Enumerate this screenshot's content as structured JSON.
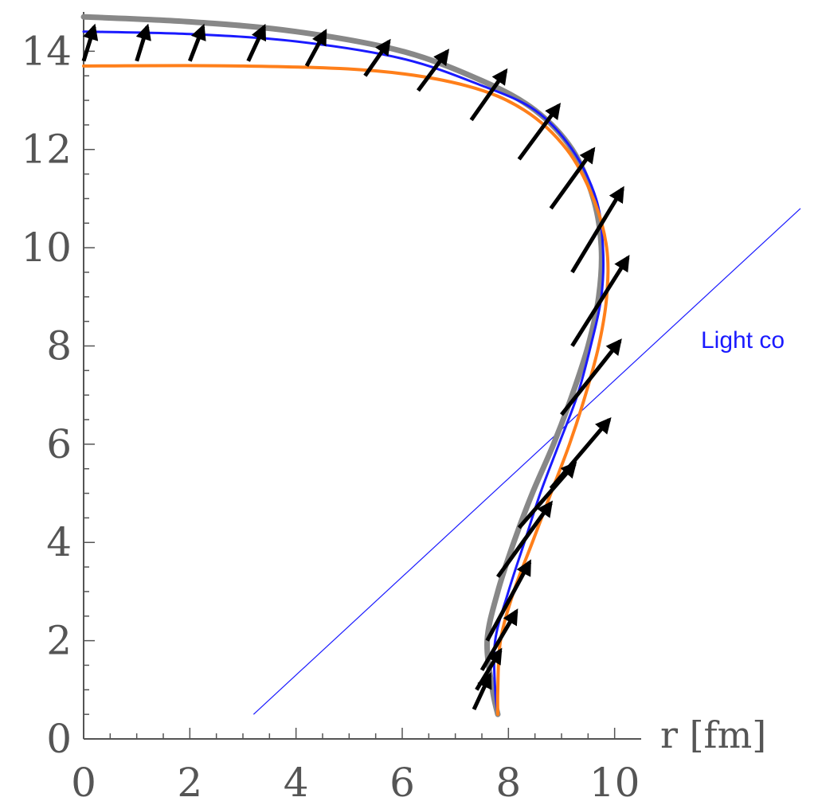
{
  "chart_data": {
    "type": "line",
    "title": "",
    "xlabel": "r [fm]",
    "ylabel": "",
    "xlim": [
      0,
      10.5
    ],
    "ylim": [
      0,
      14.8
    ],
    "x_ticks": [
      "0",
      "2",
      "4",
      "6",
      "8",
      "10"
    ],
    "y_ticks": [
      "0",
      "2",
      "4",
      "6",
      "8",
      "10",
      "12",
      "14"
    ],
    "grid": false,
    "legend": "none",
    "series": [
      {
        "color": "#888888",
        "points": [
          [
            7.8,
            0.5
          ],
          [
            7.7,
            1.0
          ],
          [
            7.6,
            2.0
          ],
          [
            7.8,
            3.0
          ],
          [
            8.1,
            4.0
          ],
          [
            8.45,
            5.0
          ],
          [
            8.85,
            6.0
          ],
          [
            9.2,
            7.0
          ],
          [
            9.5,
            8.0
          ],
          [
            9.7,
            9.0
          ],
          [
            9.75,
            10.0
          ],
          [
            9.6,
            11.0
          ],
          [
            9.2,
            12.0
          ],
          [
            8.5,
            12.8
          ],
          [
            7.5,
            13.4
          ],
          [
            6.0,
            14.0
          ],
          [
            4.0,
            14.4
          ],
          [
            2.0,
            14.6
          ],
          [
            0.0,
            14.7
          ]
        ]
      },
      {
        "color": "#1a1aff",
        "points": [
          [
            7.8,
            0.5
          ],
          [
            7.75,
            1.0
          ],
          [
            7.75,
            2.0
          ],
          [
            8.0,
            3.0
          ],
          [
            8.3,
            4.0
          ],
          [
            8.6,
            5.0
          ],
          [
            8.95,
            6.0
          ],
          [
            9.3,
            7.0
          ],
          [
            9.55,
            8.0
          ],
          [
            9.75,
            9.0
          ],
          [
            9.78,
            10.0
          ],
          [
            9.65,
            11.0
          ],
          [
            9.2,
            12.0
          ],
          [
            8.5,
            12.8
          ],
          [
            7.5,
            13.3
          ],
          [
            6.0,
            13.85
          ],
          [
            4.0,
            14.2
          ],
          [
            2.0,
            14.35
          ],
          [
            0.0,
            14.4
          ]
        ]
      },
      {
        "color": "#ff7f1a",
        "points": [
          [
            7.8,
            0.5
          ],
          [
            7.8,
            1.0
          ],
          [
            7.85,
            2.0
          ],
          [
            8.1,
            3.0
          ],
          [
            8.45,
            4.0
          ],
          [
            8.8,
            5.0
          ],
          [
            9.15,
            6.0
          ],
          [
            9.45,
            7.0
          ],
          [
            9.7,
            8.0
          ],
          [
            9.85,
            9.0
          ],
          [
            9.85,
            10.0
          ],
          [
            9.6,
            11.0
          ],
          [
            9.1,
            12.0
          ],
          [
            8.3,
            12.8
          ],
          [
            7.2,
            13.3
          ],
          [
            5.5,
            13.6
          ],
          [
            3.0,
            13.7
          ],
          [
            0.0,
            13.7
          ]
        ]
      }
    ],
    "arrows": [
      [
        0.0,
        13.8,
        0.2,
        14.5
      ],
      [
        1.0,
        13.8,
        1.2,
        14.5
      ],
      [
        2.0,
        13.8,
        2.25,
        14.5
      ],
      [
        3.1,
        13.8,
        3.4,
        14.5
      ],
      [
        4.2,
        13.7,
        4.55,
        14.4
      ],
      [
        5.3,
        13.5,
        5.75,
        14.2
      ],
      [
        6.3,
        13.2,
        6.85,
        14.0
      ],
      [
        7.3,
        12.6,
        7.95,
        13.6
      ],
      [
        8.2,
        11.8,
        8.95,
        12.9
      ],
      [
        8.8,
        10.8,
        9.6,
        12.0
      ],
      [
        9.2,
        9.5,
        10.15,
        11.2
      ],
      [
        9.2,
        8.0,
        10.25,
        9.8
      ],
      [
        9.0,
        6.6,
        10.1,
        8.1
      ],
      [
        8.8,
        5.1,
        9.9,
        6.5
      ],
      [
        8.2,
        4.3,
        9.25,
        5.6
      ],
      [
        7.8,
        3.3,
        8.8,
        4.8
      ],
      [
        7.6,
        2.0,
        8.4,
        3.6
      ],
      [
        7.5,
        1.4,
        8.15,
        2.6
      ],
      [
        7.4,
        1.0,
        7.85,
        1.8
      ],
      [
        7.35,
        0.6,
        7.65,
        1.3
      ]
    ],
    "reference_line": {
      "color": "#1a1aff",
      "x1": 3.2,
      "y1": 0.5,
      "x2": 13.5,
      "y2": 10.8
    },
    "annotations": [
      {
        "text": "Light co",
        "x": 11.9,
        "y": 7.8,
        "color": "#1a1aff"
      }
    ]
  }
}
